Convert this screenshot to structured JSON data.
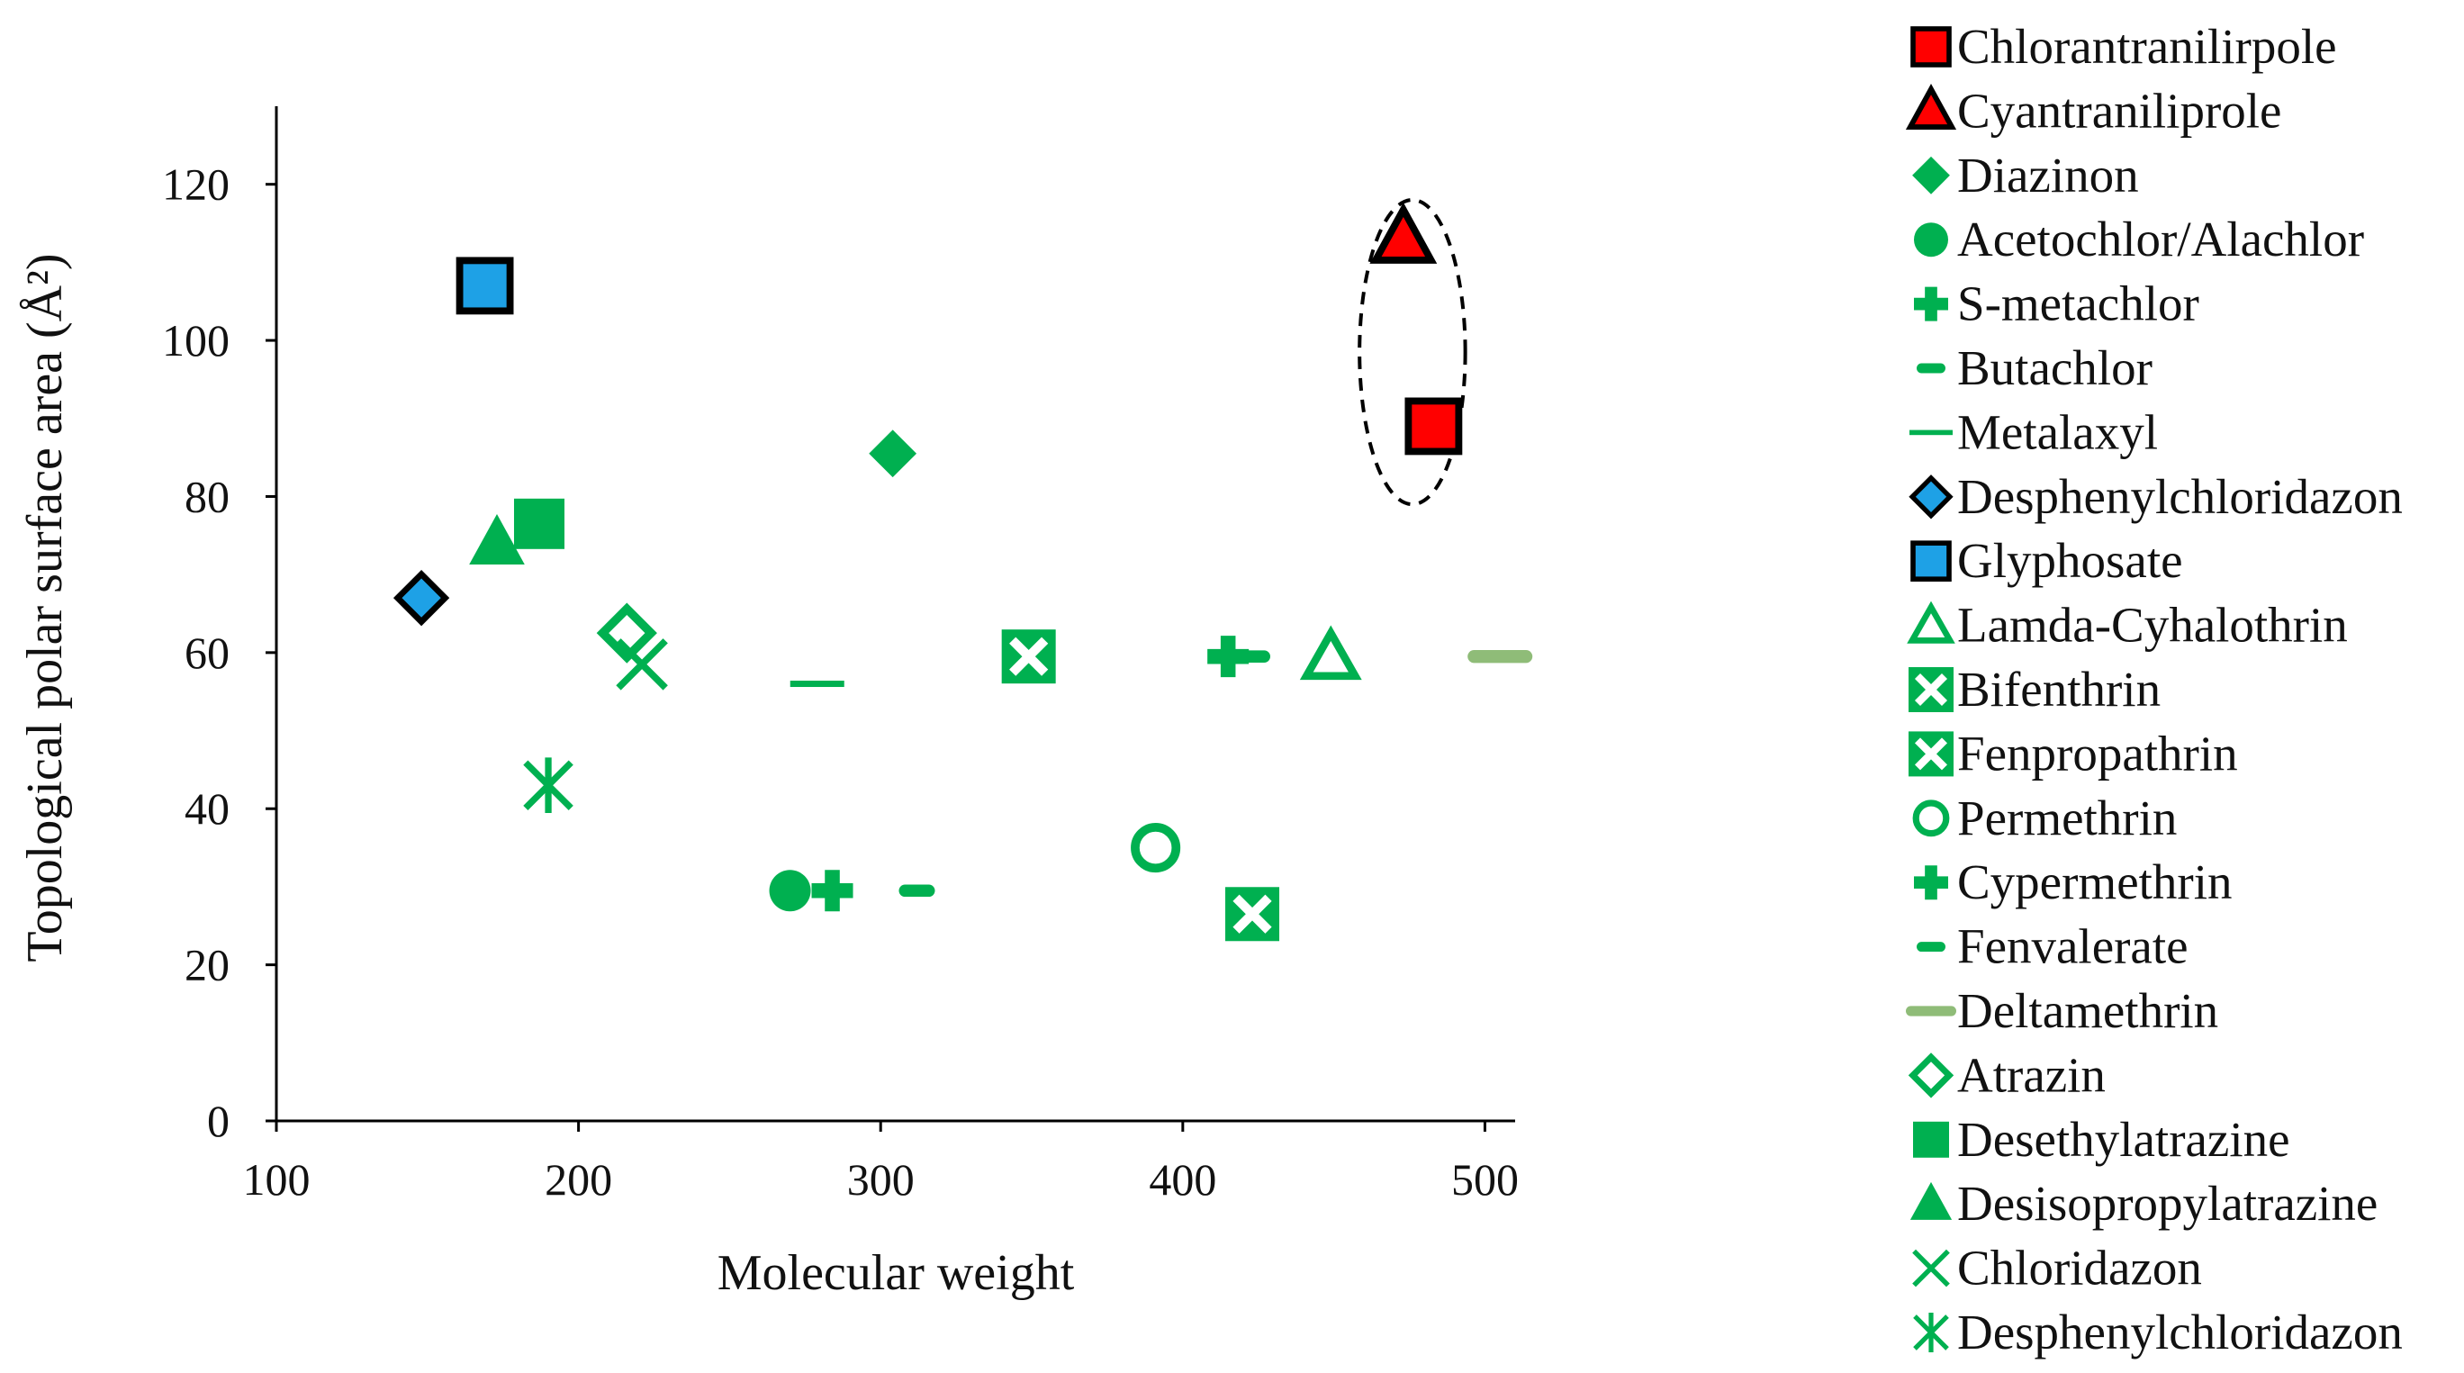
{
  "chart_data": {
    "type": "scatter",
    "title": "",
    "xlabel": "Molecular weight",
    "ylabel": "Topological polar surface area (Å²)",
    "xlim": [
      100,
      510
    ],
    "ylim": [
      0,
      130
    ],
    "xticks": [
      100,
      200,
      300,
      400,
      500
    ],
    "yticks": [
      0,
      20,
      40,
      60,
      80,
      100,
      120
    ],
    "grid": false,
    "legend_position": "right",
    "highlight": {
      "shape": "dashed-ellipse",
      "cx": 476,
      "cy": 98.5,
      "rx": 17.5,
      "ry": 19.5
    },
    "series": [
      {
        "name": "Chlorantranilirpole",
        "marker": "square",
        "fill": "#ff0000",
        "stroke": "#000000",
        "points": [
          [
            483,
            89
          ]
        ]
      },
      {
        "name": "Cyantraniliprole",
        "marker": "triangle",
        "fill": "#ff0000",
        "stroke": "#000000",
        "points": [
          [
            473,
            113
          ]
        ]
      },
      {
        "name": "Diazinon",
        "marker": "diamond",
        "fill": "#00b050",
        "stroke": "none",
        "points": [
          [
            304,
            85.5
          ]
        ]
      },
      {
        "name": "Acetochlor/Alachlor",
        "marker": "circle",
        "fill": "#00b050",
        "stroke": "none",
        "points": [
          [
            270,
            29.5
          ]
        ]
      },
      {
        "name": "S-metachlor",
        "marker": "plus",
        "fill": "#00b050",
        "stroke": "none",
        "points": [
          [
            284,
            29.5
          ]
        ]
      },
      {
        "name": "Butachlor",
        "marker": "pill",
        "fill": "#00b050",
        "stroke": "none",
        "points": [
          [
            312,
            29.5
          ]
        ]
      },
      {
        "name": "Metalaxyl",
        "marker": "dash",
        "fill": "#00b050",
        "stroke": "none",
        "points": [
          [
            279,
            56
          ]
        ]
      },
      {
        "name": "Desphenylchloridazon",
        "marker": "diamond",
        "fill": "#1ea1e6",
        "stroke": "#000000",
        "points": [
          [
            148,
            67
          ]
        ]
      },
      {
        "name": "Glyphosate",
        "marker": "square",
        "fill": "#1ea1e6",
        "stroke": "#000000",
        "points": [
          [
            169,
            107
          ]
        ]
      },
      {
        "name": "Lamda-Cyhalothrin",
        "marker": "triangle-open",
        "fill": "#00b050",
        "stroke": "none",
        "points": [
          [
            449,
            59.5
          ]
        ]
      },
      {
        "name": "Bifenthrin",
        "marker": "square-x",
        "fill": "#00b050",
        "stroke": "none",
        "points": [
          [
            423,
            26.5
          ]
        ]
      },
      {
        "name": "Fenpropathrin",
        "marker": "square-x",
        "fill": "#00b050",
        "stroke": "none",
        "points": [
          [
            349,
            59.5
          ]
        ]
      },
      {
        "name": "Permethrin",
        "marker": "circle-open",
        "fill": "#00b050",
        "stroke": "none",
        "points": [
          [
            391,
            35
          ]
        ]
      },
      {
        "name": "Cypermethrin",
        "marker": "plus",
        "fill": "#00b050",
        "stroke": "none",
        "points": [
          [
            415,
            59.5
          ]
        ]
      },
      {
        "name": "Fenvalerate",
        "marker": "pill",
        "fill": "#00b050",
        "stroke": "none",
        "points": [
          [
            423,
            59.5
          ]
        ]
      },
      {
        "name": "Deltamethrin",
        "marker": "pill-wide",
        "fill": "#8fbc78",
        "stroke": "none",
        "points": [
          [
            505,
            59.5
          ]
        ]
      },
      {
        "name": "Atrazin",
        "marker": "diamond-open",
        "fill": "#00b050",
        "stroke": "none",
        "points": [
          [
            216,
            62.5
          ]
        ]
      },
      {
        "name": "Desethylatrazine",
        "marker": "square",
        "fill": "#00b050",
        "stroke": "none",
        "points": [
          [
            187,
            76.5
          ]
        ]
      },
      {
        "name": "Desisopropylatrazine",
        "marker": "triangle",
        "fill": "#00b050",
        "stroke": "none",
        "points": [
          [
            173,
            74
          ]
        ]
      },
      {
        "name": "Chloridazon",
        "marker": "x",
        "fill": "#00b050",
        "stroke": "none",
        "points": [
          [
            221,
            58.5
          ]
        ]
      },
      {
        "name": "Desphenylchloridazon",
        "marker": "asterisk",
        "fill": "#00b050",
        "stroke": "none",
        "points": [
          [
            190,
            43
          ]
        ]
      }
    ]
  }
}
